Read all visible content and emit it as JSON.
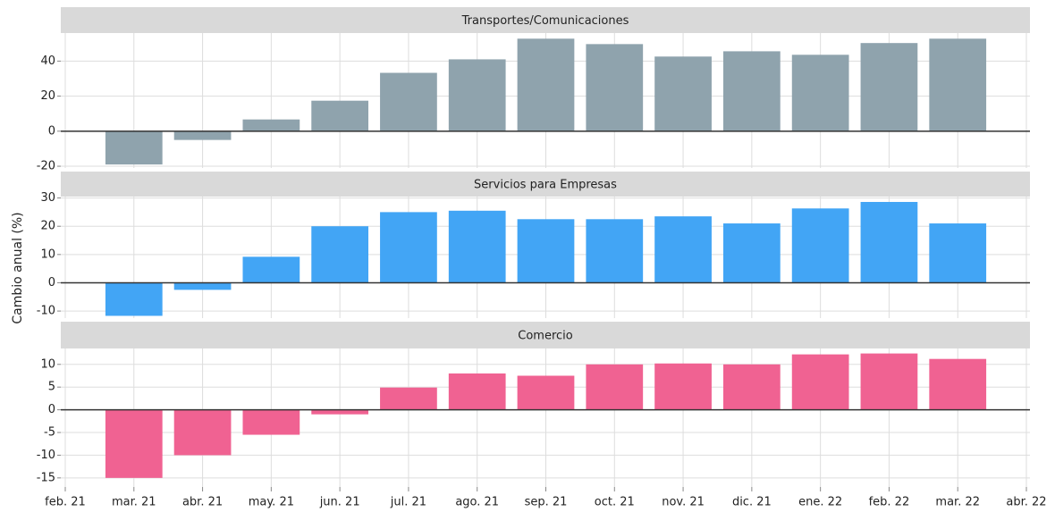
{
  "chart_data": {
    "type": "bar",
    "ylabel": "Cambio anual (%)",
    "categories": [
      "feb. 21",
      "mar. 21",
      "abr. 21",
      "may. 21",
      "jun. 21",
      "jul. 21",
      "ago. 21",
      "sep. 21",
      "oct. 21",
      "nov. 21",
      "dic. 21",
      "ene. 22",
      "feb. 22",
      "mar. 22",
      "abr. 22"
    ],
    "grid": true,
    "panels": [
      {
        "title": "Transportes/Comunicaciones",
        "color": "#8fa3ad",
        "values": [
          null,
          -19,
          -5,
          6.7,
          17.4,
          33.3,
          41,
          52.8,
          49.7,
          42.6,
          45.6,
          43.6,
          50.3,
          52.8,
          null
        ],
        "ylim": [
          -21,
          56
        ],
        "yticks": [
          -20,
          0,
          20,
          40
        ]
      },
      {
        "title": "Servicios para Empresas",
        "color": "#42a5f5",
        "values": [
          null,
          -11.7,
          -2.5,
          9.2,
          20,
          25,
          25.5,
          22.5,
          22.5,
          23.5,
          21,
          26.3,
          28.6,
          21,
          null
        ],
        "ylim": [
          -12.5,
          30.5
        ],
        "yticks": [
          -10,
          0,
          10,
          20,
          30
        ]
      },
      {
        "title": "Comercio",
        "color": "#f06292",
        "values": [
          null,
          -15,
          -10,
          -5.5,
          -1,
          4.9,
          8,
          7.5,
          10,
          10.2,
          10,
          12.2,
          12.4,
          11.2,
          null
        ],
        "ylim": [
          -17,
          13.5
        ],
        "yticks": [
          -15,
          -10,
          -5,
          0,
          5,
          10
        ]
      }
    ]
  }
}
